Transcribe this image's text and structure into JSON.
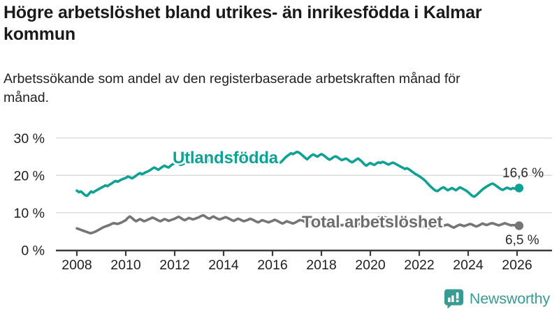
{
  "header": {
    "title": "Högre arbetslöshet bland utrikes- än inrikesfödda i Kalmar kommun",
    "subtitle": "Arbetssökande som andel av den registerbaserade arbetskraften månad för månad."
  },
  "colors": {
    "teal": "#0fa194",
    "gray_line": "#757575",
    "gray_label": "#6e6e6e",
    "grid": "#d9d9d9",
    "axis": "#3a3a3a",
    "tick_text": "#1f1f1f",
    "brand_teal": "#399a93"
  },
  "chart_data": {
    "type": "line",
    "unit": "%",
    "x_start_year": 2008,
    "points_per_year": 12,
    "xticks": [
      2008,
      2010,
      2012,
      2014,
      2016,
      2018,
      2020,
      2022,
      2024,
      2026
    ],
    "yticks": [
      {
        "value": 0,
        "label": "0 %"
      },
      {
        "value": 10,
        "label": "10 %"
      },
      {
        "value": 20,
        "label": "20 %"
      },
      {
        "value": 30,
        "label": "30 %"
      }
    ],
    "ylim": [
      0,
      30
    ],
    "grid": "horizontal",
    "legend_position": "inline-labels",
    "series": [
      {
        "name": "Utlandsfödda",
        "label": "Utlandsfödda",
        "end_label": "16,6 %",
        "end_value": 16.6,
        "color": "#0fa194",
        "values": [
          15.9,
          15.5,
          15.7,
          15.2,
          14.7,
          14.5,
          15.1,
          15.7,
          15.4,
          15.8,
          16.1,
          16.4,
          16.7,
          17.0,
          17.3,
          17.1,
          17.5,
          17.8,
          18.2,
          18.5,
          18.3,
          18.6,
          18.9,
          19.1,
          19.3,
          19.7,
          19.5,
          19.2,
          19.5,
          19.9,
          20.3,
          20.6,
          20.3,
          20.6,
          20.9,
          21.1,
          21.4,
          21.8,
          22.1,
          21.8,
          21.5,
          21.9,
          22.3,
          22.6,
          22.3,
          22.1,
          22.6,
          23.0,
          23.2,
          23.4,
          23.1,
          22.8,
          23.0,
          23.3,
          23.6,
          23.9,
          23.6,
          23.3,
          23.5,
          23.8,
          24.0,
          24.2,
          23.9,
          23.6,
          23.8,
          24.1,
          24.4,
          24.2,
          23.9,
          24.1,
          24.3,
          24.1,
          24.3,
          24.5,
          24.2,
          23.9,
          24.1,
          24.4,
          24.7,
          24.5,
          24.2,
          24.4,
          24.6,
          24.4,
          24.6,
          24.8,
          24.5,
          24.2,
          24.4,
          24.7,
          25.0,
          24.8,
          24.5,
          24.7,
          24.9,
          24.7,
          24.9,
          24.4,
          23.8,
          23.2,
          23.5,
          24.0,
          24.6,
          25.1,
          25.5,
          25.9,
          25.7,
          26.0,
          26.3,
          26.1,
          25.7,
          25.2,
          24.7,
          24.3,
          24.8,
          25.3,
          25.6,
          25.3,
          25.0,
          25.4,
          25.7,
          25.4,
          25.0,
          24.5,
          24.2,
          24.5,
          24.9,
          25.1,
          24.8,
          24.4,
          24.1,
          24.3,
          24.5,
          24.2,
          23.8,
          23.5,
          23.8,
          24.2,
          24.5,
          24.1,
          23.6,
          23.0,
          22.6,
          23.0,
          23.3,
          23.0,
          22.8,
          23.2,
          23.5,
          23.3,
          23.6,
          23.4,
          23.1,
          22.9,
          23.2,
          23.4,
          23.2,
          22.9,
          22.6,
          22.3,
          22.0,
          21.7,
          21.9,
          21.6,
          21.2,
          20.8,
          20.4,
          20.1,
          19.8,
          19.4,
          19.0,
          18.5,
          17.9,
          17.3,
          16.8,
          16.3,
          15.9,
          15.8,
          16.2,
          16.6,
          16.8,
          16.4,
          16.0,
          16.3,
          16.6,
          16.3,
          16.0,
          16.4,
          16.8,
          16.5,
          16.2,
          15.9,
          15.5,
          15.0,
          14.5,
          14.3,
          14.7,
          15.2,
          15.7,
          16.2,
          16.6,
          17.0,
          17.3,
          17.6,
          17.8,
          17.5,
          17.1,
          16.7,
          16.3,
          16.1,
          16.4,
          16.7,
          16.5,
          16.3,
          16.6,
          16.4,
          16.5,
          16.6
        ]
      },
      {
        "name": "Total arbetslöshet",
        "label": "Total arbetslöshet",
        "end_label": "6,5 %",
        "end_value": 6.5,
        "color": "#757575",
        "values": [
          5.8,
          5.6,
          5.4,
          5.2,
          5.0,
          4.8,
          4.6,
          4.5,
          4.7,
          4.9,
          5.2,
          5.5,
          5.8,
          6.1,
          6.3,
          6.5,
          6.7,
          7.0,
          7.2,
          7.1,
          7.0,
          7.2,
          7.4,
          7.7,
          8.0,
          8.6,
          9.0,
          8.6,
          8.1,
          7.7,
          8.0,
          8.3,
          8.0,
          7.7,
          7.9,
          8.2,
          8.4,
          8.7,
          8.5,
          8.2,
          7.9,
          7.7,
          8.0,
          8.3,
          8.1,
          7.8,
          8.0,
          8.2,
          8.4,
          8.7,
          8.9,
          8.6,
          8.2,
          8.0,
          8.3,
          8.6,
          8.4,
          8.2,
          8.4,
          8.6,
          8.8,
          9.1,
          9.3,
          9.0,
          8.6,
          8.4,
          8.7,
          9.0,
          8.7,
          8.4,
          8.2,
          8.4,
          8.6,
          8.8,
          8.6,
          8.3,
          8.0,
          7.8,
          8.1,
          8.4,
          8.2,
          7.9,
          7.7,
          7.9,
          8.1,
          8.4,
          8.2,
          7.9,
          7.6,
          7.4,
          7.7,
          8.0,
          7.8,
          7.6,
          7.4,
          7.6,
          7.8,
          8.1,
          7.9,
          7.6,
          7.3,
          7.1,
          7.4,
          7.7,
          7.5,
          7.3,
          7.1,
          7.3,
          7.6,
          7.9,
          8.1,
          7.8,
          7.4,
          7.1,
          7.4,
          7.7,
          7.5,
          7.2,
          7.0,
          7.2,
          7.4,
          7.6,
          7.4,
          7.1,
          6.8,
          6.6,
          6.9,
          7.2,
          7.0,
          6.8,
          6.6,
          6.8,
          7.0,
          7.2,
          7.0,
          6.8,
          6.6,
          6.5,
          6.8,
          7.1,
          7.0,
          6.8,
          6.7,
          6.9,
          7.2,
          7.5,
          7.9,
          8.4,
          8.7,
          8.9,
          9.0,
          8.8,
          8.6,
          8.4,
          8.3,
          8.2,
          8.1,
          8.0,
          7.8,
          7.6,
          7.4,
          7.2,
          7.3,
          7.1,
          6.9,
          6.7,
          6.6,
          6.5,
          6.4,
          6.3,
          6.2,
          6.1,
          6.0,
          5.9,
          6.1,
          6.3,
          6.2,
          6.1,
          6.2,
          6.3,
          6.5,
          6.7,
          6.8,
          6.5,
          6.2,
          6.0,
          6.3,
          6.6,
          6.8,
          6.6,
          6.4,
          6.6,
          6.8,
          7.0,
          6.8,
          6.5,
          6.3,
          6.5,
          6.8,
          7.1,
          6.9,
          6.7,
          6.9,
          7.1,
          7.2,
          7.0,
          6.8,
          6.6,
          6.8,
          7.0,
          7.2,
          7.0,
          6.8,
          6.6,
          6.7,
          6.6,
          6.5,
          6.5
        ]
      }
    ]
  },
  "footer": {
    "brand": "Newsworthy"
  }
}
